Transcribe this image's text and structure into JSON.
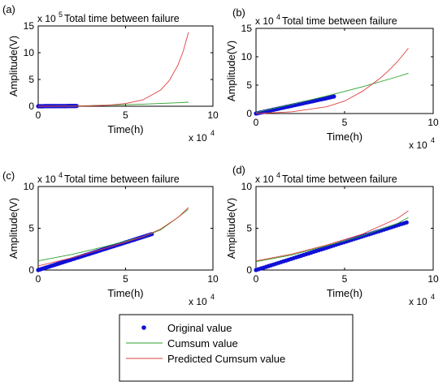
{
  "colors": {
    "original": "#1010d8",
    "cumsum": "#2ca02c",
    "predicted": "#e04040",
    "axis": "#000000"
  },
  "legend": {
    "position": "bottom-center",
    "entries": [
      {
        "label": "Original value",
        "marker": "dot",
        "color": "#1010d8"
      },
      {
        "label": "Cumsum value",
        "marker": "line",
        "color": "#2ca02c"
      },
      {
        "label": "Predicted Cumsum value",
        "marker": "line",
        "color": "#e04040"
      }
    ]
  },
  "chart_data": [
    {
      "panel_label": "(a)",
      "type": "line",
      "title": "Total time between failure",
      "xlabel": "Time(h)",
      "ylabel": "Amplitude(V)",
      "x_multiplier": "x 10",
      "x_exponent": "4",
      "y_multiplier": "x 10",
      "y_exponent": "5",
      "xlim": [
        0,
        10
      ],
      "ylim": [
        0,
        15
      ],
      "xticks": [
        0,
        5,
        10
      ],
      "yticks": [
        0,
        5,
        10,
        15
      ],
      "xticklabels": [
        "0",
        "5",
        "10"
      ],
      "yticklabels": [
        "0",
        "5",
        "10",
        "15"
      ],
      "grid": false,
      "series": [
        {
          "role": "original",
          "style": "dots",
          "x_range": [
            0,
            2.2
          ],
          "y": [
            0.0,
            0.05
          ]
        },
        {
          "role": "cumsum",
          "style": "line",
          "x": [
            0,
            2,
            4,
            6,
            8,
            8.6
          ],
          "y": [
            0.0,
            0.05,
            0.2,
            0.4,
            0.65,
            0.75
          ]
        },
        {
          "role": "predicted",
          "style": "line",
          "x": [
            0,
            2,
            3,
            4,
            5,
            6,
            7,
            7.5,
            8,
            8.3,
            8.6
          ],
          "y": [
            0.0,
            0.02,
            0.08,
            0.2,
            0.5,
            1.2,
            3.0,
            4.8,
            7.7,
            10.3,
            13.8
          ]
        }
      ]
    },
    {
      "panel_label": "(b)",
      "type": "line",
      "title": "Total time between failure",
      "xlabel": "Time(h)",
      "ylabel": "Amplitude(V)",
      "x_multiplier": "x 10",
      "x_exponent": "4",
      "y_multiplier": "x 10",
      "y_exponent": "4",
      "xlim": [
        0,
        10
      ],
      "ylim": [
        0,
        15
      ],
      "xticks": [
        0,
        5,
        10
      ],
      "yticks": [
        0,
        5,
        10,
        15
      ],
      "xticklabels": [
        "0",
        "5",
        "10"
      ],
      "yticklabels": [
        "0",
        "5",
        "10",
        "15"
      ],
      "grid": false,
      "series": [
        {
          "role": "original",
          "style": "dots",
          "x_range": [
            0,
            4.4
          ],
          "y": [
            0.0,
            3.0
          ]
        },
        {
          "role": "cumsum",
          "style": "line",
          "x": [
            0,
            2,
            4,
            6,
            8,
            8.6
          ],
          "y": [
            0.2,
            1.6,
            3.1,
            4.7,
            6.5,
            7.1
          ]
        },
        {
          "role": "predicted",
          "style": "line",
          "x": [
            0,
            2,
            4,
            5,
            6,
            7,
            7.5,
            8,
            8.6
          ],
          "y": [
            0.0,
            0.3,
            1.2,
            2.2,
            3.9,
            6.2,
            7.6,
            9.2,
            11.5
          ]
        }
      ]
    },
    {
      "panel_label": "(c)",
      "type": "line",
      "title": "Total time between failure",
      "xlabel": "Time(h)",
      "ylabel": "Amplitude(V)",
      "x_multiplier": "x 10",
      "x_exponent": "4",
      "y_multiplier": "x 10",
      "y_exponent": "4",
      "xlim": [
        0,
        10
      ],
      "ylim": [
        0,
        10
      ],
      "xticks": [
        0,
        5,
        10
      ],
      "yticks": [
        0,
        5,
        10
      ],
      "xticklabels": [
        "0",
        "5",
        "10"
      ],
      "yticklabels": [
        "0",
        "5",
        "10"
      ],
      "grid": false,
      "series": [
        {
          "role": "original",
          "style": "dots",
          "x_range": [
            0,
            6.5
          ],
          "y": [
            0.0,
            4.3
          ]
        },
        {
          "role": "cumsum",
          "style": "line",
          "x": [
            0,
            2,
            4,
            6,
            7,
            8,
            8.6
          ],
          "y": [
            1.1,
            1.9,
            2.9,
            4.0,
            4.8,
            6.3,
            7.3
          ]
        },
        {
          "role": "predicted",
          "style": "line",
          "x": [
            0,
            2,
            4,
            6,
            7,
            8,
            8.6
          ],
          "y": [
            0.5,
            1.5,
            2.7,
            4.0,
            4.9,
            6.3,
            7.5
          ]
        }
      ]
    },
    {
      "panel_label": "(d)",
      "type": "line",
      "title": "Total time between failure",
      "xlabel": "Time(h)",
      "ylabel": "Amplitude(V)",
      "x_multiplier": "x 10",
      "x_exponent": "4",
      "y_multiplier": "x 10",
      "y_exponent": "4",
      "xlim": [
        0,
        10
      ],
      "ylim": [
        0,
        10
      ],
      "xticks": [
        0,
        5,
        10
      ],
      "yticks": [
        0,
        5,
        10
      ],
      "xticklabels": [
        "0",
        "5",
        "10"
      ],
      "yticklabels": [
        "0",
        "5",
        "10"
      ],
      "grid": false,
      "series": [
        {
          "role": "original",
          "style": "dots",
          "x_range": [
            0,
            8.5
          ],
          "y": [
            0.0,
            5.7
          ]
        },
        {
          "role": "cumsum",
          "style": "line",
          "x": [
            0,
            2,
            4,
            6,
            8,
            8.6
          ],
          "y": [
            1.0,
            1.8,
            2.9,
            4.1,
            5.6,
            6.3
          ]
        },
        {
          "role": "predicted",
          "style": "line",
          "x": [
            0,
            2,
            4,
            6,
            8,
            8.6
          ],
          "y": [
            1.1,
            1.9,
            3.0,
            4.3,
            6.2,
            7.1
          ]
        }
      ]
    }
  ]
}
